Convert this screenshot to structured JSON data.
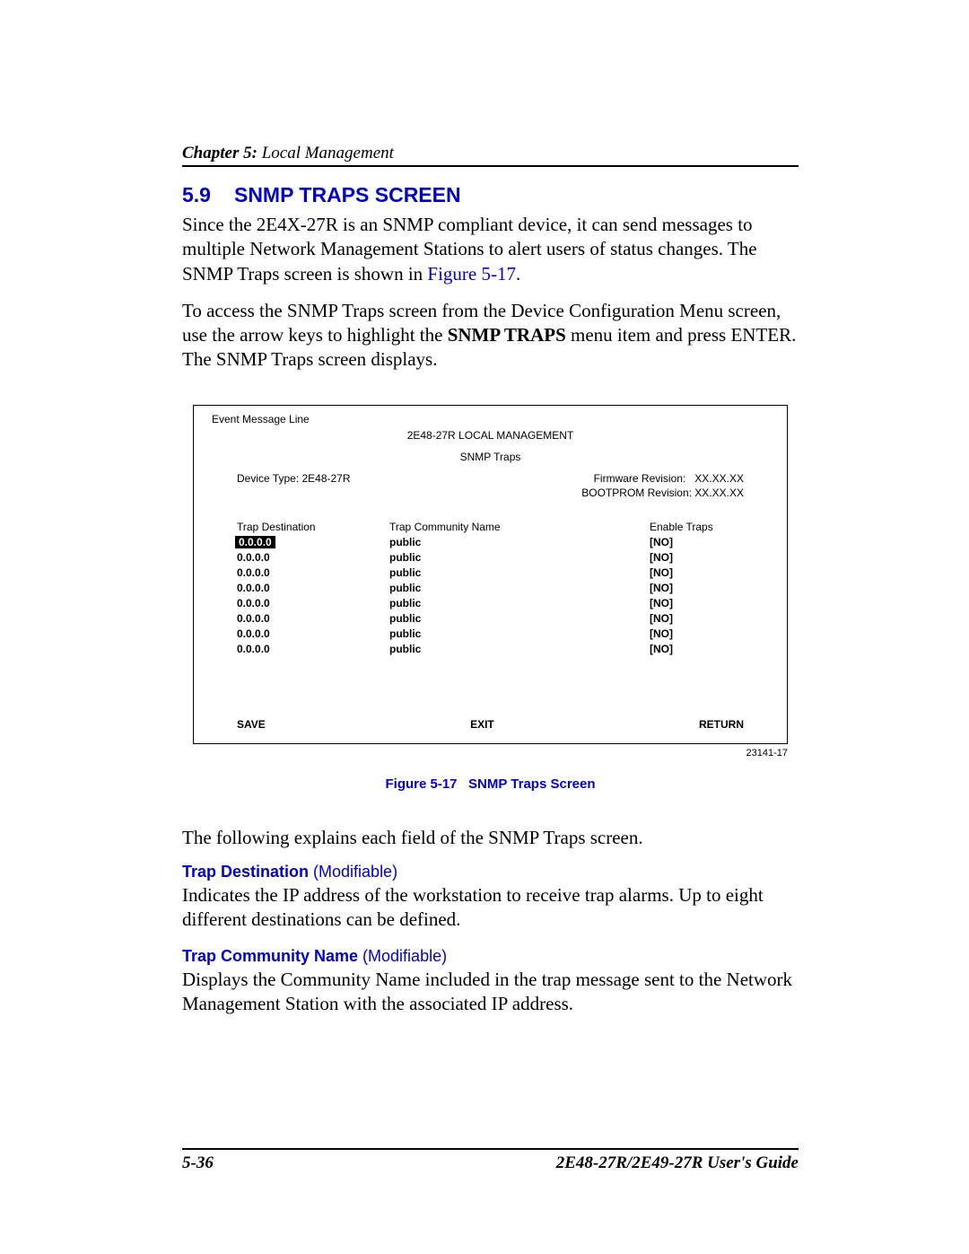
{
  "header": {
    "chapter_num": "Chapter 5:",
    "chapter_title": " Local Management"
  },
  "section": {
    "number": "5.9",
    "title": "SNMP TRAPS SCREEN"
  },
  "paragraphs": {
    "p1a": "Since the 2E4X-27R is an SNMP compliant device, it can send messages to multiple Network Management Stations to alert users of status changes. The SNMP Traps screen is shown in ",
    "p1_link": "Figure 5-17",
    "p1b": ".",
    "p2a": "To access the SNMP Traps screen from the Device Configuration Menu screen, use the arrow keys to highlight the ",
    "p2_bold": "SNMP TRAPS",
    "p2b": " menu item and press ENTER. The SNMP Traps screen displays."
  },
  "screen": {
    "event_line": "Event Message Line",
    "mgmt_title": "2E48-27R LOCAL MANAGEMENT",
    "mgmt_sub": "SNMP Traps",
    "device_type_label": "Device Type: 2E48-27R",
    "fw_label": "Firmware Revision:",
    "fw_value": "XX.XX.XX",
    "bootprom": "BOOTPROM Revision: XX.XX.XX",
    "col1": "Trap Destination",
    "col2": "Trap Community Name",
    "col3": "Enable Traps",
    "rows": [
      {
        "dest": "0.0.0.0",
        "comm": "public",
        "enable": "[NO]",
        "hl": true
      },
      {
        "dest": "0.0.0.0",
        "comm": "public",
        "enable": "[NO]",
        "hl": false
      },
      {
        "dest": "0.0.0.0",
        "comm": "public",
        "enable": "[NO]",
        "hl": false
      },
      {
        "dest": "0.0.0.0",
        "comm": "public",
        "enable": "[NO]",
        "hl": false
      },
      {
        "dest": "0.0.0.0",
        "comm": "public",
        "enable": "[NO]",
        "hl": false
      },
      {
        "dest": "0.0.0.0",
        "comm": "public",
        "enable": "[NO]",
        "hl": false
      },
      {
        "dest": "0.0.0.0",
        "comm": "public",
        "enable": "[NO]",
        "hl": false
      },
      {
        "dest": "0.0.0.0",
        "comm": "public",
        "enable": "[NO]",
        "hl": false
      }
    ],
    "save": "SAVE",
    "exit": "EXIT",
    "ret": "RETURN"
  },
  "figure": {
    "id": "23141-17",
    "caption_num": "Figure 5-17",
    "caption_txt": "SNMP Traps Screen"
  },
  "post": {
    "p3": "The following explains each field of the SNMP Traps screen.",
    "f1_name": "Trap Destination",
    "f1_mod": " (Modifiable)",
    "f1_body": "Indicates the IP address of the workstation to receive trap alarms. Up to eight different destinations can be defined.",
    "f2_name": "Trap Community Name",
    "f2_mod": " (Modifiable)",
    "f2_body": "Displays the Community Name included in the trap message sent to the Network Management Station with the associated IP address."
  },
  "footer": {
    "page": "5-36",
    "guide": "2E48-27R/2E49-27R User's Guide"
  },
  "colors": {
    "link": "#0000c8",
    "text": "#000000",
    "bg": "#ffffff"
  }
}
